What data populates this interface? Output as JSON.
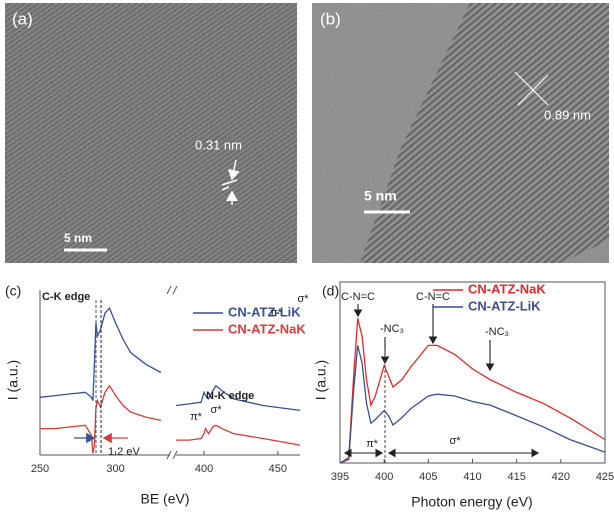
{
  "panels": [
    {
      "label": "(a)",
      "spacing": "0.31 nm",
      "scale_bar": "5 nm"
    },
    {
      "label": "(b)",
      "spacing": "0.89 nm",
      "scale_bar": "5 nm"
    }
  ],
  "chart_data": [
    {
      "type": "line",
      "panel_label": "(c)",
      "xlabel": "BE (eV)",
      "ylabel": "I (a.u.)",
      "xlim": [
        250,
        465
      ],
      "axis_break": [
        336,
        381
      ],
      "ylim": [
        0,
        10
      ],
      "xticks": [
        250,
        300,
        400,
        450
      ],
      "x": [
        250,
        260,
        270,
        280,
        284,
        285,
        286,
        287,
        288,
        290,
        293,
        296,
        300,
        305,
        310,
        320,
        330,
        381,
        390,
        398,
        400,
        401,
        403,
        406,
        408,
        412,
        420,
        440,
        465
      ],
      "series": [
        {
          "name": "CN-ATZ-LiK",
          "color": "#3a4f9a",
          "values": [
            3.5,
            3.6,
            3.7,
            3.8,
            3.5,
            3.3,
            5.5,
            8.0,
            7.2,
            7.6,
            8.6,
            8.9,
            8.0,
            7.0,
            6.2,
            5.5,
            5.0,
            3.0,
            3.1,
            3.2,
            3.8,
            3.6,
            3.4,
            3.9,
            4.2,
            3.9,
            3.4,
            3.0,
            2.7
          ]
        },
        {
          "name": "CN-ATZ-NaK",
          "color": "#d93a3a",
          "values": [
            1.6,
            1.6,
            1.7,
            1.8,
            1.2,
            0.1,
            0.6,
            2.8,
            3.3,
            2.9,
            3.8,
            4.2,
            3.6,
            3.0,
            2.6,
            2.3,
            2.1,
            0.9,
            0.9,
            1.0,
            1.3,
            1.6,
            1.3,
            1.7,
            1.8,
            1.6,
            1.3,
            1.0,
            0.6
          ]
        }
      ],
      "annotations": [
        "C-K edge",
        "π*",
        "σ*",
        "N-K edge",
        "π*",
        "σ*",
        "1.2 eV"
      ]
    },
    {
      "type": "line",
      "panel_label": "(d)",
      "xlabel": "Photon energy (eV)",
      "ylabel": "I (a.u.)",
      "xlim": [
        395,
        425
      ],
      "ylim": [
        0,
        10
      ],
      "xticks": [
        395,
        400,
        405,
        410,
        415,
        420,
        425
      ],
      "x": [
        395,
        396,
        396.5,
        397,
        397.5,
        398,
        398.5,
        399,
        400,
        400.5,
        401,
        402,
        403,
        405,
        406,
        408,
        410,
        412,
        415,
        418,
        421,
        425
      ],
      "series": [
        {
          "name": "CN-ATZ-NaK",
          "color": "#e8262a",
          "values": [
            0,
            0.3,
            4.5,
            8.0,
            7.0,
            4.6,
            3.2,
            3.7,
            5.4,
            4.8,
            4.2,
            4.6,
            5.3,
            6.5,
            6.5,
            6.0,
            5.2,
            4.6,
            3.9,
            3.3,
            2.5,
            1.3
          ]
        },
        {
          "name": "CN-ATZ-LiK",
          "color": "#3f4f8c",
          "values": [
            0,
            0.2,
            3.8,
            6.5,
            5.5,
            3.3,
            2.2,
            2.4,
            2.9,
            2.6,
            2.1,
            2.5,
            3.0,
            3.7,
            3.8,
            3.7,
            3.4,
            3.2,
            2.6,
            2.0,
            1.3,
            0.6
          ]
        }
      ],
      "annotations": [
        "C-N=C",
        "-NC₃",
        "C-N=C",
        "-NC₃",
        "π*",
        "σ*"
      ]
    }
  ]
}
